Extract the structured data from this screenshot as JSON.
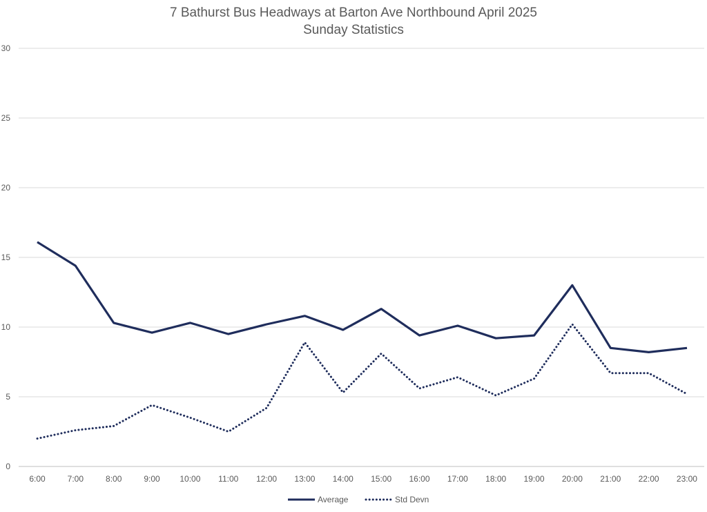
{
  "chart_data": {
    "type": "line",
    "title": "7 Bathurst Bus Headways at Barton Ave Northbound April 2025",
    "subtitle": "Sunday Statistics",
    "xlabel": "",
    "ylabel": "",
    "categories": [
      "6:00",
      "7:00",
      "8:00",
      "9:00",
      "10:00",
      "11:00",
      "12:00",
      "13:00",
      "14:00",
      "15:00",
      "16:00",
      "17:00",
      "18:00",
      "19:00",
      "20:00",
      "21:00",
      "22:00",
      "23:00"
    ],
    "ylim": [
      0,
      30
    ],
    "yticks": [
      0,
      5,
      10,
      15,
      20,
      25,
      30
    ],
    "grid": true,
    "legend_position": "bottom",
    "series": [
      {
        "name": "Average",
        "style": "solid",
        "color": "#1f2d5c",
        "values": [
          16.1,
          14.4,
          10.3,
          9.6,
          10.3,
          9.5,
          10.2,
          10.8,
          9.8,
          11.3,
          9.4,
          10.1,
          9.2,
          9.4,
          13.0,
          8.5,
          8.2,
          8.5
        ]
      },
      {
        "name": "Std Devn",
        "style": "dotted",
        "color": "#1f2d5c",
        "values": [
          2.0,
          2.6,
          2.9,
          4.4,
          3.5,
          2.5,
          4.2,
          8.9,
          5.3,
          8.1,
          5.6,
          6.4,
          5.1,
          6.3,
          10.2,
          6.7,
          6.7,
          5.2
        ]
      }
    ]
  }
}
